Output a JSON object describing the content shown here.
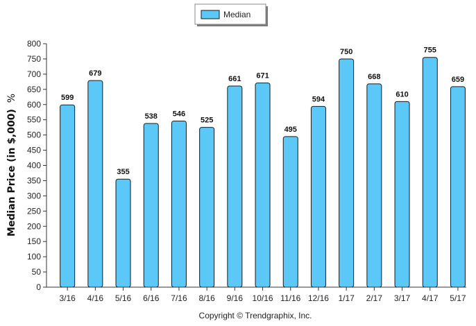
{
  "chart_data": {
    "type": "bar",
    "categories": [
      "3/16",
      "4/16",
      "5/16",
      "6/16",
      "7/16",
      "8/16",
      "9/16",
      "10/16",
      "11/16",
      "12/16",
      "1/17",
      "2/17",
      "3/17",
      "4/17",
      "5/17"
    ],
    "series": [
      {
        "name": "Median",
        "values": [
          599,
          679,
          355,
          538,
          546,
          525,
          661,
          671,
          495,
          594,
          750,
          668,
          610,
          755,
          659
        ]
      }
    ],
    "ylabel": "Median Price (in $,000)",
    "ylabel_suffix": "%",
    "ylim": [
      0,
      800
    ],
    "ytick_step": 50,
    "legend_position": "top-center",
    "bar_color": "#5bc8f8",
    "bar_edge_color": "#1a1a1a",
    "grid": false
  },
  "footer": {
    "copyright": "Copyright © Trendgraphix, Inc."
  }
}
